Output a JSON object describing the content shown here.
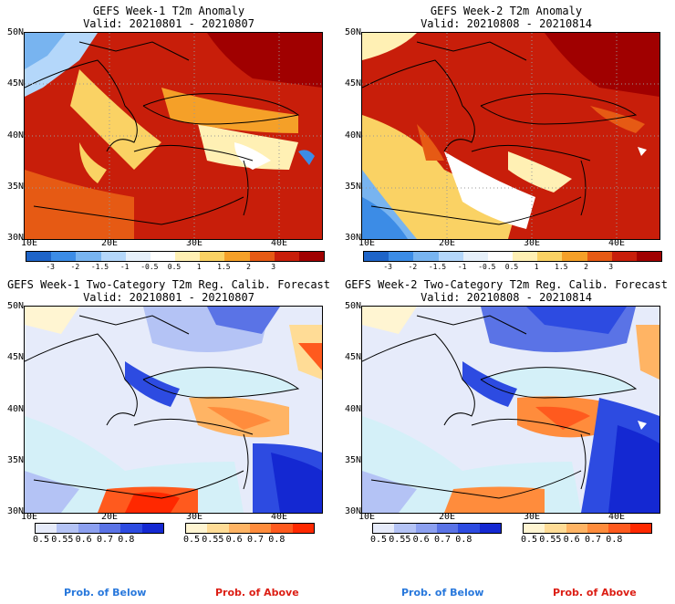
{
  "panels": [
    {
      "title": "GEFS Week-1 T2m Anomaly",
      "valid": "Valid: 20210801 - 20210807"
    },
    {
      "title": "GEFS Week-2 T2m Anomaly",
      "valid": "Valid: 20210808 - 20210814"
    },
    {
      "title": "GEFS Week-1 Two-Category T2m Reg. Calib. Forecast",
      "valid": "Valid: 20210801 - 20210807"
    },
    {
      "title": "GEFS Week-2 Two-Category T2m Reg. Calib. Forecast",
      "valid": "Valid: 20210808 - 20210814"
    }
  ],
  "lat_labels": [
    "50N",
    "45N",
    "40N",
    "35N",
    "30N"
  ],
  "lon_labels": [
    "10E",
    "20E",
    "30E",
    "40E"
  ],
  "anomaly_scale": {
    "colors": [
      "#1e64c8",
      "#3c8ce6",
      "#78b4f0",
      "#b4d7fa",
      "#e6f0fa",
      "#ffffff",
      "#fff0b4",
      "#fad264",
      "#f5a028",
      "#e65a14",
      "#c81e0a",
      "#a00000"
    ],
    "labels": [
      "-3",
      "-2",
      "-1.5",
      "-1",
      "-0.5",
      "0.5",
      "1",
      "1.5",
      "2",
      "3"
    ]
  },
  "prob_below": {
    "colors": [
      "#e6ebfa",
      "#b4c3f5",
      "#8ca0f0",
      "#5a73e6",
      "#2d4be1",
      "#1428d2"
    ],
    "labels": [
      "0.5",
      "0.55",
      "0.6",
      "0.7",
      "0.8"
    ],
    "legend": "Prob. of Below",
    "legend_color": "#2878dc"
  },
  "prob_above": {
    "colors": [
      "#fff5d2",
      "#ffdc96",
      "#ffb464",
      "#ff8c3c",
      "#ff5a1e",
      "#ff2800"
    ],
    "labels": [
      "0.5",
      "0.55",
      "0.6",
      "0.7",
      "0.8"
    ],
    "legend": "Prob. of Above",
    "legend_color": "#dc1e14"
  }
}
